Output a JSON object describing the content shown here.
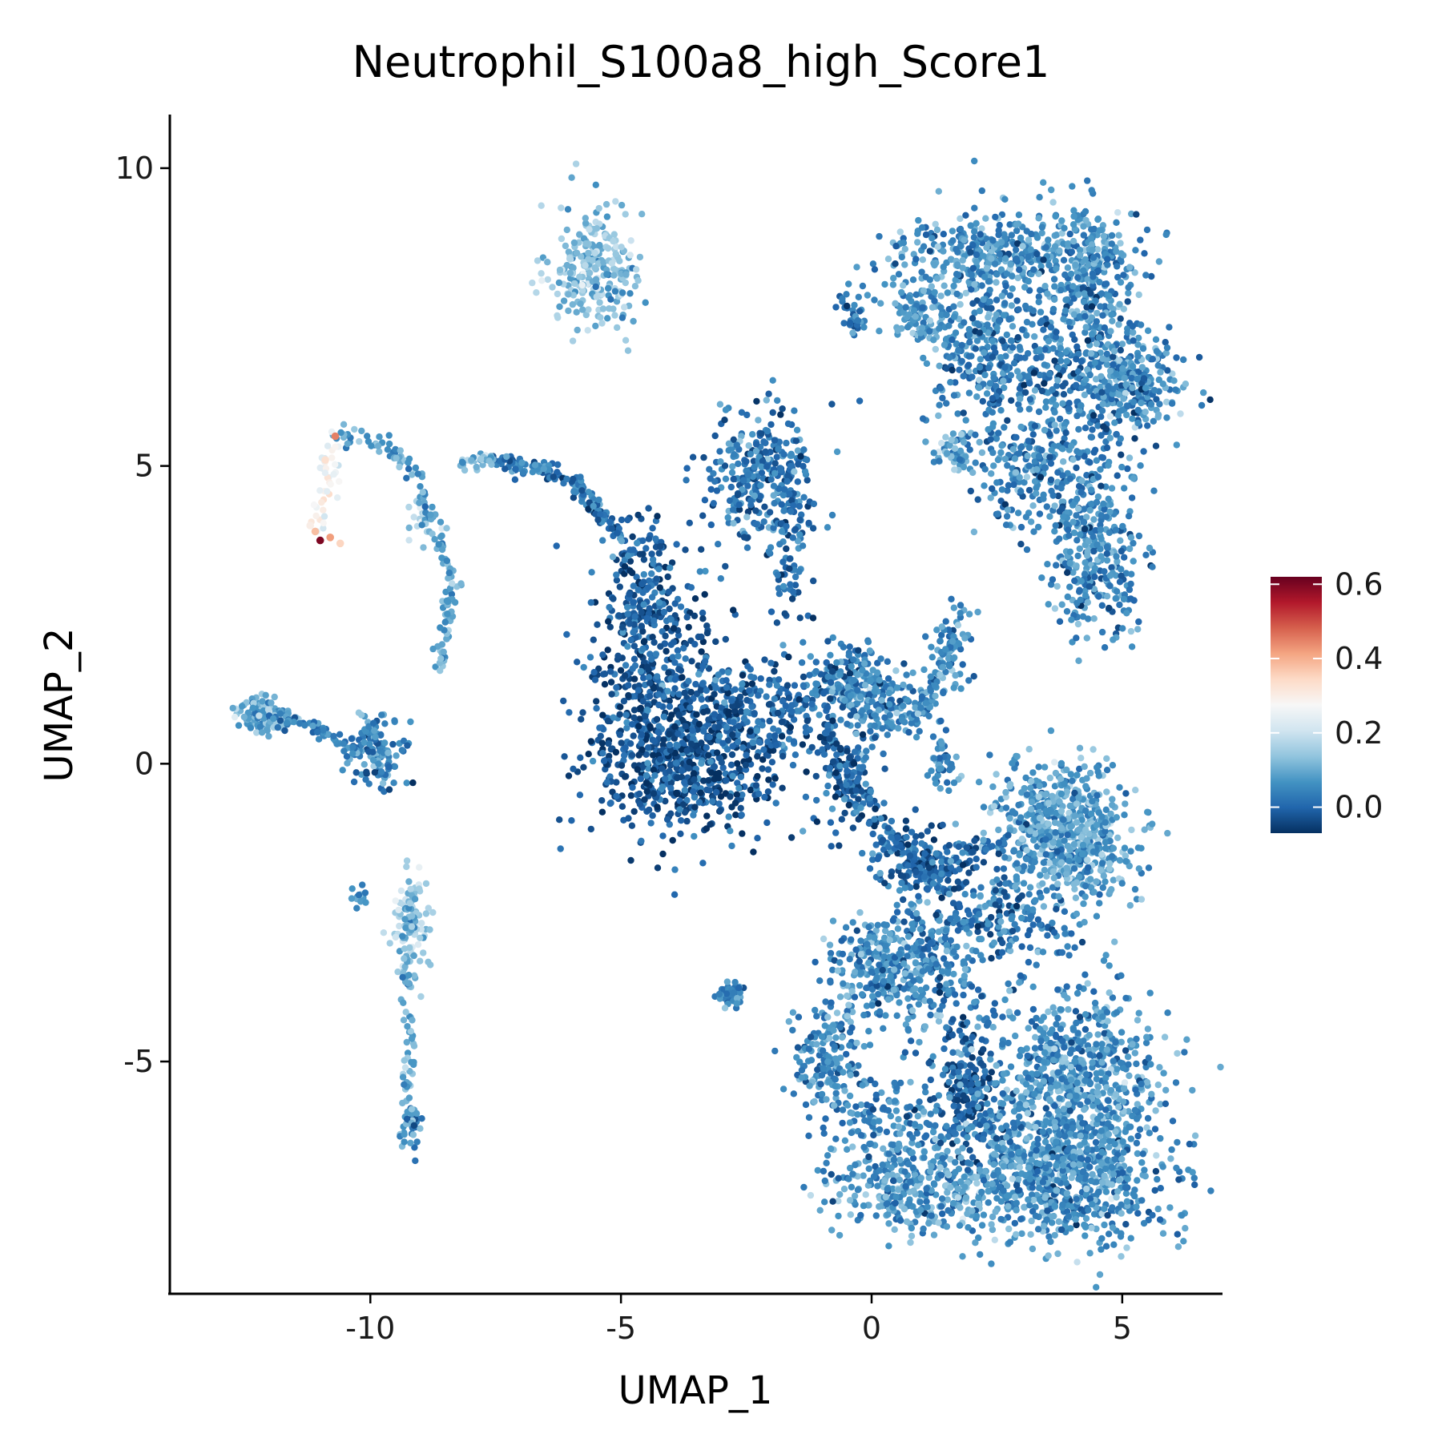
{
  "chart_data": {
    "type": "scatter",
    "title": "Neutrophil_S100a8_high_Score1",
    "xlabel": "UMAP_1",
    "ylabel": "UMAP_2",
    "xlim": [
      -14,
      7
    ],
    "ylim": [
      -8.9,
      10.9
    ],
    "xticks": [
      -10,
      -5,
      0,
      5
    ],
    "xtick_labels": [
      "-10",
      "-5",
      "0",
      "5"
    ],
    "yticks": [
      -5,
      0,
      5,
      10
    ],
    "ytick_labels": [
      "-5",
      "0",
      "5",
      "10"
    ],
    "grid": false,
    "legend_position": "right",
    "colorbar": {
      "min": -0.07,
      "max": 0.62,
      "ticks": [
        0.0,
        0.2,
        0.4,
        0.6
      ],
      "tick_labels": [
        "0.0",
        "0.2",
        "0.4",
        "0.6"
      ],
      "colors": [
        "#053061",
        "#2166ac",
        "#4393c3",
        "#92c5de",
        "#d1e5f0",
        "#f7f7f7",
        "#fddbc7",
        "#f4a582",
        "#d6604d",
        "#b2182b",
        "#67001f"
      ]
    },
    "clusters": [
      {
        "x": -5.5,
        "y": 8.3,
        "sx": 0.45,
        "sy": 0.55,
        "n": 260,
        "score": 0.13
      },
      {
        "x": 1.0,
        "y": 7.6,
        "sx": 0.4,
        "sy": 0.25,
        "n": 90,
        "score": 0.08
      },
      {
        "x": 2.8,
        "y": 8.6,
        "sx": 1.2,
        "sy": 0.35,
        "n": 380,
        "score": 0.06
      },
      {
        "x": 2.2,
        "y": 7.3,
        "sx": 0.45,
        "sy": 0.9,
        "n": 200,
        "score": 0.05
      },
      {
        "x": 4.3,
        "y": 7.9,
        "sx": 0.5,
        "sy": 0.7,
        "n": 260,
        "score": 0.06
      },
      {
        "x": 3.4,
        "y": 6.6,
        "sx": 1.2,
        "sy": 0.5,
        "n": 300,
        "score": 0.02
      },
      {
        "x": 5.2,
        "y": 6.4,
        "sx": 0.45,
        "sy": 0.4,
        "n": 230,
        "score": 0.07
      },
      {
        "x": 3.6,
        "y": 5.0,
        "sx": 0.8,
        "sy": 0.6,
        "n": 330,
        "score": 0.04
      },
      {
        "x": 4.5,
        "y": 3.4,
        "sx": 0.45,
        "sy": 0.6,
        "n": 260,
        "score": 0.05
      },
      {
        "x": 1.7,
        "y": 5.2,
        "sx": 0.25,
        "sy": 0.15,
        "n": 50,
        "score": 0.1
      },
      {
        "x": -2.2,
        "y": 4.8,
        "sx": 0.55,
        "sy": 0.55,
        "n": 320,
        "score": 0.03
      },
      {
        "x": -1.6,
        "y": 3.2,
        "sx": 0.2,
        "sy": 0.6,
        "n": 50,
        "score": 0.02
      },
      {
        "x": -4.2,
        "y": 1.2,
        "sx": 0.7,
        "sy": 1.0,
        "n": 450,
        "score": -0.02
      },
      {
        "x": -3.6,
        "y": 0.0,
        "sx": 1.0,
        "sy": 0.6,
        "n": 500,
        "score": -0.02
      },
      {
        "x": -4.6,
        "y": 2.8,
        "sx": 0.35,
        "sy": 0.6,
        "n": 160,
        "score": -0.01
      },
      {
        "x": -2.0,
        "y": 0.9,
        "sx": 0.7,
        "sy": 0.5,
        "n": 200,
        "score": -0.01
      },
      {
        "x": -0.5,
        "y": 1.4,
        "sx": 0.35,
        "sy": 0.3,
        "n": 140,
        "score": 0.03
      },
      {
        "x": 0.0,
        "y": 1.0,
        "sx": 0.35,
        "sy": 0.35,
        "n": 130,
        "score": 0.05
      },
      {
        "x": -0.4,
        "y": -0.4,
        "sx": 0.3,
        "sy": 0.4,
        "n": 80,
        "score": 0.0
      },
      {
        "x": 0.8,
        "y": -1.5,
        "sx": 0.5,
        "sy": 0.3,
        "n": 90,
        "score": 0.01
      },
      {
        "x": 1.6,
        "y": 2.0,
        "sx": 0.2,
        "sy": 0.4,
        "n": 60,
        "score": 0.06
      },
      {
        "x": 0.9,
        "y": 1.0,
        "sx": 0.3,
        "sy": 0.25,
        "n": 40,
        "score": 0.04
      },
      {
        "x": 3.8,
        "y": -1.2,
        "sx": 0.7,
        "sy": 0.6,
        "n": 650,
        "score": 0.08
      },
      {
        "x": 2.3,
        "y": -2.6,
        "sx": 0.9,
        "sy": 0.45,
        "n": 220,
        "score": 0.03
      },
      {
        "x": 1.4,
        "y": 0.0,
        "sx": 0.2,
        "sy": 0.2,
        "n": 40,
        "score": 0.05
      },
      {
        "x": 0.1,
        "y": -3.4,
        "sx": 0.5,
        "sy": 0.45,
        "n": 220,
        "score": 0.06
      },
      {
        "x": 1.0,
        "y": -3.5,
        "sx": 0.6,
        "sy": 0.5,
        "n": 180,
        "score": 0.04
      },
      {
        "x": -0.9,
        "y": -4.9,
        "sx": 0.35,
        "sy": 0.5,
        "n": 160,
        "score": 0.05
      },
      {
        "x": -2.8,
        "y": -3.9,
        "sx": 0.15,
        "sy": 0.12,
        "n": 45,
        "score": 0.04
      },
      {
        "x": 1.9,
        "y": -5.4,
        "sx": 0.35,
        "sy": 0.7,
        "n": 200,
        "score": -0.01
      },
      {
        "x": 4.0,
        "y": -5.2,
        "sx": 0.85,
        "sy": 0.7,
        "n": 600,
        "score": 0.07
      },
      {
        "x": 3.8,
        "y": -6.9,
        "sx": 1.1,
        "sy": 0.6,
        "n": 800,
        "score": 0.06
      },
      {
        "x": 1.0,
        "y": -7.2,
        "sx": 0.9,
        "sy": 0.35,
        "n": 330,
        "score": 0.08
      },
      {
        "x": 0.6,
        "y": -6.0,
        "sx": 0.8,
        "sy": 0.4,
        "n": 180,
        "score": 0.05
      },
      {
        "x": -12.1,
        "y": 0.8,
        "sx": 0.25,
        "sy": 0.15,
        "n": 120,
        "score": 0.09
      },
      {
        "x": -9.9,
        "y": 0.2,
        "sx": 0.3,
        "sy": 0.3,
        "n": 120,
        "score": 0.04
      },
      {
        "x": -9.2,
        "y": -2.7,
        "sx": 0.2,
        "sy": 0.4,
        "n": 80,
        "score": 0.16
      },
      {
        "x": -9.2,
        "y": -6.1,
        "sx": 0.1,
        "sy": 0.2,
        "n": 40,
        "score": 0.07
      },
      {
        "x": -8.9,
        "y": 4.1,
        "sx": 0.15,
        "sy": 0.15,
        "n": 30,
        "score": 0.17
      },
      {
        "x": -10.2,
        "y": -2.2,
        "sx": 0.1,
        "sy": 0.1,
        "n": 12,
        "score": 0.05
      }
    ],
    "trails": [
      {
        "points": [
          [
            -7.5,
            5.1
          ],
          [
            -6.0,
            4.8
          ],
          [
            -5.0,
            3.8
          ]
        ],
        "spread": 0.08,
        "n": 150,
        "score": 0.02
      },
      {
        "points": [
          [
            -8.3,
            5.0
          ],
          [
            -7.5,
            5.1
          ]
        ],
        "spread": 0.06,
        "n": 30,
        "score": 0.12
      },
      {
        "points": [
          [
            -10.7,
            5.5
          ],
          [
            -9.7,
            5.4
          ],
          [
            -9.0,
            4.8
          ],
          [
            -8.8,
            4.0
          ]
        ],
        "spread": 0.08,
        "n": 70,
        "score": 0.08
      },
      {
        "points": [
          [
            -10.7,
            5.5
          ],
          [
            -10.9,
            4.5
          ],
          [
            -11.0,
            3.9
          ]
        ],
        "spread": 0.12,
        "n": 40,
        "score": 0.26
      },
      {
        "points": [
          [
            -8.7,
            3.8
          ],
          [
            -8.3,
            3.2
          ],
          [
            -8.5,
            2.4
          ],
          [
            -8.6,
            1.6
          ]
        ],
        "spread": 0.08,
        "n": 70,
        "score": 0.1
      },
      {
        "points": [
          [
            -12.0,
            0.8
          ],
          [
            -11.0,
            0.6
          ],
          [
            -10.3,
            0.2
          ]
        ],
        "spread": 0.06,
        "n": 60,
        "score": 0.03
      },
      {
        "points": [
          [
            -9.2,
            -2.2
          ],
          [
            -9.3,
            -3.4
          ],
          [
            -9.2,
            -4.7
          ],
          [
            -9.3,
            -5.7
          ]
        ],
        "spread": 0.07,
        "n": 80,
        "score": 0.1
      },
      {
        "points": [
          [
            -0.9,
            0.7
          ],
          [
            -0.3,
            -0.6
          ],
          [
            0.6,
            -1.4
          ],
          [
            1.9,
            -2.2
          ]
        ],
        "spread": 0.12,
        "n": 150,
        "score": -0.01
      },
      {
        "points": [
          [
            0.5,
            -2.0
          ],
          [
            1.8,
            -1.6
          ],
          [
            2.6,
            -1.3
          ]
        ],
        "spread": 0.15,
        "n": 80,
        "score": 0.01
      },
      {
        "points": [
          [
            1.6,
            2.2
          ],
          [
            1.2,
            1.2
          ],
          [
            0.9,
            0.8
          ]
        ],
        "spread": 0.08,
        "n": 60,
        "score": 0.05
      },
      {
        "points": [
          [
            -0.6,
            7.8
          ],
          [
            -0.2,
            7.3
          ]
        ],
        "spread": 0.1,
        "n": 30,
        "score": 0.04
      },
      {
        "points": [
          [
            0.9,
            7.2
          ],
          [
            1.6,
            7.2
          ]
        ],
        "spread": 0.08,
        "n": 20,
        "score": 0.06
      }
    ],
    "highlights": [
      {
        "x": -10.7,
        "y": 5.5,
        "score": 0.45
      },
      {
        "x": -10.9,
        "y": 5.1,
        "score": 0.33
      },
      {
        "x": -11.1,
        "y": 3.9,
        "score": 0.38
      },
      {
        "x": -10.8,
        "y": 3.8,
        "score": 0.42
      },
      {
        "x": -11.0,
        "y": 3.75,
        "score": 0.6
      },
      {
        "x": -10.6,
        "y": 3.7,
        "score": 0.35
      },
      {
        "x": -11.2,
        "y": 4.0,
        "score": 0.3
      }
    ]
  }
}
